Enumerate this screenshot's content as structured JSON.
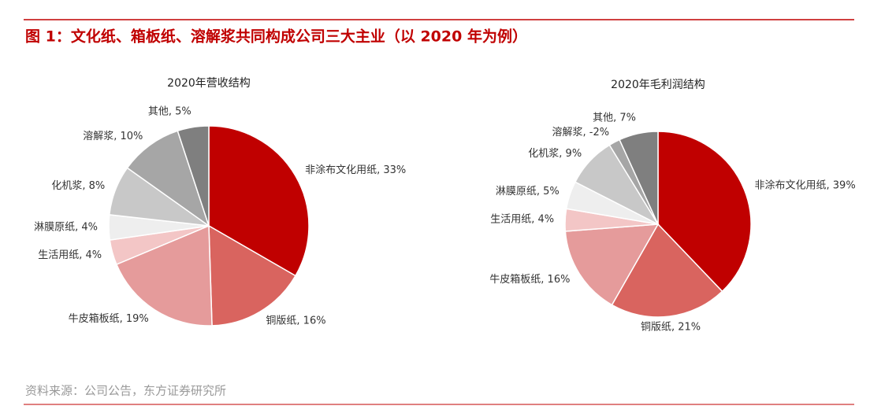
{
  "header": {
    "title": "图 1：文化纸、箱板纸、溶解浆共同构成公司三大主业（以 2020 年为例）"
  },
  "footer": {
    "source": "资料来源：公司公告，东方证券研究所"
  },
  "chart_data": [
    {
      "type": "pie",
      "title": "2020年营收结构",
      "values": [
        33,
        16,
        19,
        4,
        4,
        8,
        10,
        5
      ],
      "value_labels": [
        "非涂布文化用纸, 33%",
        "铜版纸, 16%",
        "牛皮箱板纸, 19%",
        "生活用纸, 4%",
        "淋膜原纸, 4%",
        "化机浆, 8%",
        "溶解浆, 10%",
        "其他, 5%"
      ],
      "colors": [
        "#c00000",
        "#d9645f",
        "#e59b9b",
        "#f3c6c6",
        "#eeeeee",
        "#c8c8c8",
        "#a6a6a6",
        "#7f7f7f"
      ]
    },
    {
      "type": "pie",
      "title": "2020年毛利润结构",
      "values": [
        39,
        21,
        16,
        4,
        5,
        9,
        -2,
        7
      ],
      "value_labels": [
        "非涂布文化用纸, 39%",
        "铜版纸, 21%",
        "牛皮箱板纸, 16%",
        "生活用纸, 4%",
        "淋膜原纸, 5%",
        "化机浆, 9%",
        "溶解浆, -2%",
        "其他, 7%"
      ],
      "colors": [
        "#c00000",
        "#d9645f",
        "#e59b9b",
        "#f3c6c6",
        "#eeeeee",
        "#c8c8c8",
        "#a6a6a6",
        "#7f7f7f"
      ]
    }
  ]
}
